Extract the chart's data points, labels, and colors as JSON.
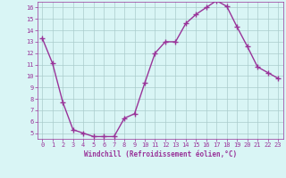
{
  "x": [
    0,
    1,
    2,
    3,
    4,
    5,
    6,
    7,
    8,
    9,
    10,
    11,
    12,
    13,
    14,
    15,
    16,
    17,
    18,
    19,
    20,
    21,
    22,
    23
  ],
  "y": [
    13.3,
    11.1,
    7.7,
    5.3,
    5.0,
    4.7,
    4.7,
    4.7,
    6.3,
    6.7,
    9.4,
    12.0,
    13.0,
    13.0,
    14.6,
    15.4,
    16.0,
    16.6,
    16.1,
    14.3,
    12.6,
    10.8,
    10.3,
    9.8
  ],
  "line_color": "#993399",
  "marker": "+",
  "marker_size": 4,
  "line_width": 1,
  "bg_color": "#d9f5f5",
  "grid_color": "#aacccc",
  "tick_color": "#993399",
  "label_color": "#993399",
  "xlabel": "Windchill (Refroidissement éolien,°C)",
  "xlim": [
    -0.5,
    23.5
  ],
  "ylim": [
    4.5,
    16.5
  ],
  "yticks": [
    5,
    6,
    7,
    8,
    9,
    10,
    11,
    12,
    13,
    14,
    15,
    16
  ],
  "xticks": [
    0,
    1,
    2,
    3,
    4,
    5,
    6,
    7,
    8,
    9,
    10,
    11,
    12,
    13,
    14,
    15,
    16,
    17,
    18,
    19,
    20,
    21,
    22,
    23
  ]
}
